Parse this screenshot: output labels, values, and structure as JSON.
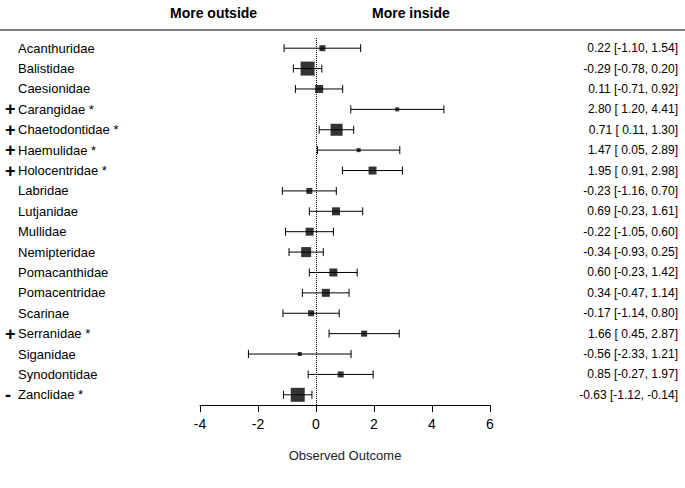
{
  "chart_data": {
    "type": "forest",
    "orientation": "horizontal",
    "header_left": "More outside",
    "header_right": "More inside",
    "xlabel": "Observed Outcome",
    "categories": [
      "Acanthuridae",
      "Balistidae",
      "Caesionidae",
      "Carangidae *",
      "Chaetodontidae *",
      "Haemulidae *",
      "Holocentridae *",
      "Labridae",
      "Lutjanidae",
      "Mullidae",
      "Nemipteridae",
      "Pomacanthidae",
      "Pomacentridae",
      "Scarinae",
      "Serranidae *",
      "Siganidae",
      "Synodontidae",
      "Zanclidae *"
    ],
    "signs": [
      null,
      null,
      null,
      "+",
      "+",
      "+",
      "+",
      null,
      null,
      null,
      null,
      null,
      null,
      null,
      "+",
      null,
      null,
      "-"
    ],
    "values": [
      0.22,
      -0.29,
      0.11,
      2.8,
      0.71,
      1.47,
      1.95,
      -0.23,
      0.69,
      -0.22,
      -0.34,
      0.6,
      0.34,
      -0.17,
      1.66,
      -0.56,
      0.85,
      -0.63
    ],
    "ci_lower": [
      -1.1,
      -0.78,
      -0.71,
      1.2,
      0.11,
      0.05,
      0.91,
      -1.16,
      -0.23,
      -1.05,
      -0.93,
      -0.23,
      -0.47,
      -1.14,
      0.45,
      -2.33,
      -0.27,
      -1.12
    ],
    "ci_upper": [
      1.54,
      0.2,
      0.92,
      4.41,
      1.3,
      2.89,
      2.98,
      0.7,
      1.61,
      0.6,
      0.25,
      1.42,
      1.14,
      0.8,
      2.87,
      1.21,
      1.97,
      -0.14
    ],
    "value_labels": [
      "0.22 [-1.10, 1.54]",
      "-0.29 [-0.78, 0.20]",
      "0.11 [-0.71, 0.92]",
      "2.80 [ 1.20, 4.41]",
      "0.71 [ 0.11, 1.30]",
      "1.47 [ 0.05, 2.89]",
      "1.95 [ 0.91, 2.98]",
      "-0.23 [-1.16, 0.70]",
      "0.69 [-0.23, 1.61]",
      "-0.22 [-1.05, 0.60]",
      "-0.34 [-0.93, 0.25]",
      "0.60 [-0.23, 1.42]",
      "0.34 [-0.47, 1.14]",
      "-0.17 [-1.14, 0.80]",
      "1.66 [ 0.45, 2.87]",
      "-0.56 [-2.33, 1.21]",
      "0.85 [-0.27, 1.97]",
      "-0.63 [-1.12, -0.14]"
    ],
    "weights": [
      6,
      14,
      8,
      4,
      12,
      4,
      8,
      6,
      8,
      8,
      10,
      8,
      8,
      6,
      6,
      4,
      6,
      14
    ],
    "reference_x": 0,
    "xlim": [
      -4,
      6
    ],
    "xticks": [
      -4,
      -2,
      0,
      2,
      4,
      6
    ],
    "color": "#000000",
    "marker": "square",
    "grid": false,
    "data_labels": true
  }
}
